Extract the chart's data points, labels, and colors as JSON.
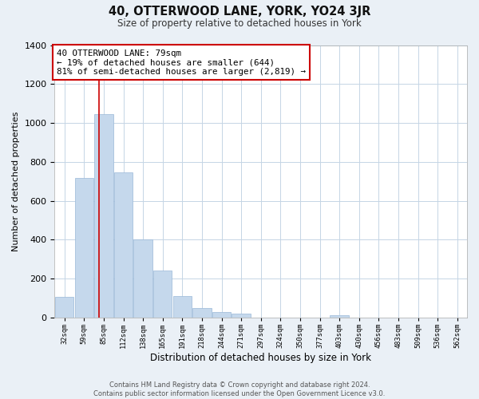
{
  "title": "40, OTTERWOOD LANE, YORK, YO24 3JR",
  "subtitle": "Size of property relative to detached houses in York",
  "xlabel": "Distribution of detached houses by size in York",
  "ylabel": "Number of detached properties",
  "bar_color": "#c5d8ec",
  "bar_edge_color": "#9ab8d8",
  "bin_labels": [
    "32sqm",
    "59sqm",
    "85sqm",
    "112sqm",
    "138sqm",
    "165sqm",
    "191sqm",
    "218sqm",
    "244sqm",
    "271sqm",
    "297sqm",
    "324sqm",
    "350sqm",
    "377sqm",
    "403sqm",
    "430sqm",
    "456sqm",
    "483sqm",
    "509sqm",
    "536sqm",
    "562sqm"
  ],
  "bar_heights": [
    107,
    717,
    1047,
    747,
    400,
    243,
    110,
    48,
    27,
    22,
    0,
    0,
    0,
    0,
    14,
    0,
    0,
    0,
    0,
    0,
    0
  ],
  "ylim": [
    0,
    1400
  ],
  "yticks": [
    0,
    200,
    400,
    600,
    800,
    1000,
    1200,
    1400
  ],
  "property_line_label": "40 OTTERWOOD LANE: 79sqm",
  "annotation_line1": "← 19% of detached houses are smaller (644)",
  "annotation_line2": "81% of semi-detached houses are larger (2,819) →",
  "annotation_box_color": "#ffffff",
  "annotation_box_edge": "#cc0000",
  "property_line_color": "#cc0000",
  "footer_line1": "Contains HM Land Registry data © Crown copyright and database right 2024.",
  "footer_line2": "Contains public sector information licensed under the Open Government Licence v3.0.",
  "background_color": "#eaf0f6",
  "plot_bg_color": "#ffffff",
  "grid_color": "#c5d5e5",
  "n_bins": 21
}
